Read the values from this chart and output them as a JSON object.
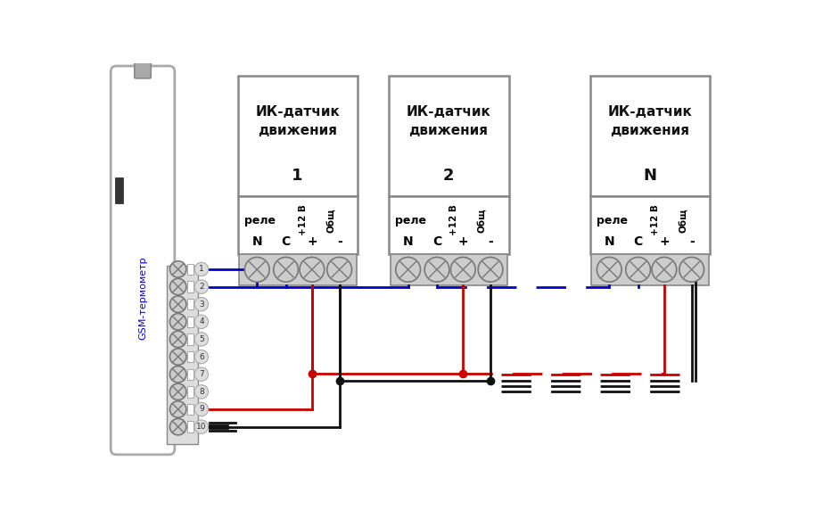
{
  "bg_color": "#ffffff",
  "fig_w": 9.14,
  "fig_h": 5.91,
  "dpi": 100,
  "gsm_label": "GSM-термометр",
  "sensor_labels": [
    "ИК-датчик\nдвижения\n1",
    "ИК-датчик\nдвижения\n2",
    "ИК-датчик\nдвижения\nN"
  ],
  "sensor_numbers": [
    "1",
    "2",
    "N"
  ],
  "colors": {
    "box_edge": "#888888",
    "box_fill": "#ffffff",
    "gsm_edge": "#aaaaaa",
    "gsm_fill": "#ffffff",
    "wire_blue": "#0000cc",
    "wire_red": "#cc0000",
    "wire_black": "#111111",
    "terminal_fill": "#cccccc",
    "terminal_edge": "#777777",
    "gsm_text": "#0000ee",
    "num_label": "#000000"
  },
  "lw": 2.0
}
